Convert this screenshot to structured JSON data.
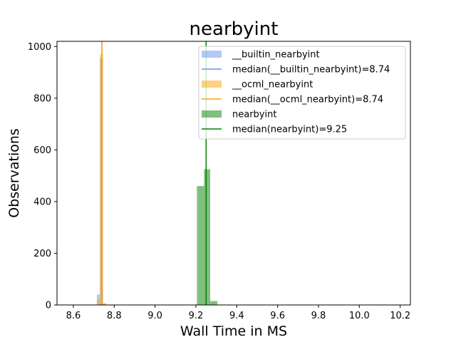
{
  "chart_data": {
    "type": "histogram",
    "title": "nearbyint",
    "xlabel": "Wall Time in MS",
    "ylabel": "Observations",
    "xlim": [
      8.52,
      10.25
    ],
    "ylim": [
      0,
      1020
    ],
    "x_ticks": [
      8.6,
      8.8,
      9.0,
      9.2,
      9.4,
      9.6,
      9.8,
      10.0,
      10.2
    ],
    "x_tick_labels": [
      "8.6",
      "8.8",
      "9.0",
      "9.2",
      "9.4",
      "9.6",
      "9.8",
      "10.0",
      "10.2"
    ],
    "y_ticks": [
      0,
      200,
      400,
      600,
      800,
      1000
    ],
    "y_tick_labels": [
      "0",
      "200",
      "400",
      "600",
      "800",
      "1000"
    ],
    "grid": false,
    "legend_position": "top-right",
    "series": [
      {
        "name": "__builtin_nearbyint",
        "color": "#6495ed",
        "bins": [
          {
            "x0": 8.715,
            "x1": 8.73,
            "count": 40
          },
          {
            "x0": 8.73,
            "x1": 8.745,
            "count": 955
          },
          {
            "x0": 8.745,
            "x1": 8.76,
            "count": 5
          }
        ]
      },
      {
        "name": "__ocml_nearbyint",
        "color": "#ffa500",
        "bins": [
          {
            "x0": 8.6,
            "x1": 8.615,
            "count": 1
          },
          {
            "x0": 8.715,
            "x1": 8.73,
            "count": 22
          },
          {
            "x0": 8.73,
            "x1": 8.745,
            "count": 970
          },
          {
            "x0": 8.745,
            "x1": 8.76,
            "count": 7
          }
        ]
      },
      {
        "name": "nearbyint",
        "color": "#008000",
        "bins": [
          {
            "x0": 9.205,
            "x1": 9.24,
            "count": 460
          },
          {
            "x0": 9.24,
            "x1": 9.27,
            "count": 525
          },
          {
            "x0": 9.27,
            "x1": 9.305,
            "count": 15
          }
        ]
      }
    ],
    "medians": [
      {
        "series": "__builtin_nearbyint",
        "value": 8.74,
        "color": "#6495ed"
      },
      {
        "series": "__ocml_nearbyint",
        "value": 8.74,
        "color": "#ffa500"
      },
      {
        "series": "nearbyint",
        "value": 9.25,
        "color": "#008000"
      }
    ],
    "legend": [
      {
        "label": "__builtin_nearbyint",
        "kind": "patch",
        "color": "#6495ed"
      },
      {
        "label": "median(__builtin_nearbyint)=8.74",
        "kind": "line",
        "color": "#6495ed"
      },
      {
        "label": "__ocml_nearbyint",
        "kind": "patch",
        "color": "#ffa500"
      },
      {
        "label": "median(__ocml_nearbyint)=8.74",
        "kind": "line",
        "color": "#ffa500"
      },
      {
        "label": "nearbyint",
        "kind": "patch",
        "color": "#008000"
      },
      {
        "label": "median(nearbyint)=9.25",
        "kind": "line",
        "color": "#008000"
      }
    ]
  }
}
